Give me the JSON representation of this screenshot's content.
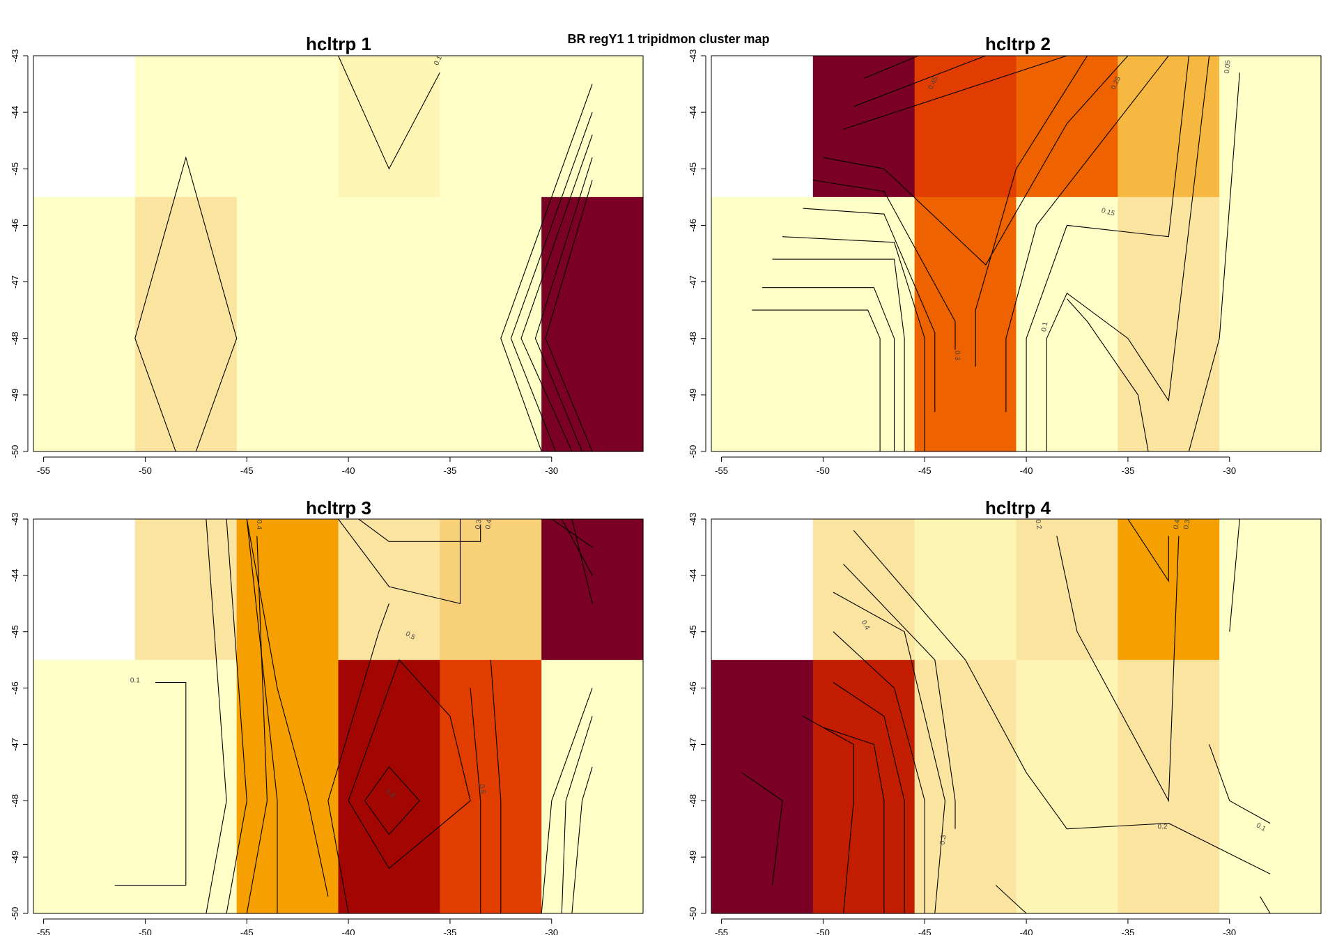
{
  "title": "BR regY1 1 tripidmon cluster map",
  "colors": {
    "levels": [
      "#FFFFC8",
      "#FEF5B4",
      "#FBE3A0",
      "#F8D07A",
      "#F6B840",
      "#F5A000",
      "#EE6300",
      "#E13D00",
      "#C21D00",
      "#A30500",
      "#7A0025"
    ]
  },
  "chart_data": [
    {
      "type": "heatmap",
      "title": "hcltrp 1",
      "x_ticks": [
        -55,
        -50,
        -45,
        -40,
        -35,
        -30
      ],
      "y_ticks": [
        -43,
        -44,
        -45,
        -46,
        -47,
        -48,
        -49,
        -50
      ],
      "xlim": [
        -55.5,
        -25.5
      ],
      "ylim": [
        -50,
        -43
      ],
      "cells": {
        "x_centers": [
          -53,
          -48,
          -43,
          -38,
          -33,
          -28
        ],
        "row_top": [
          null,
          0,
          0,
          1,
          0,
          0
        ],
        "row_bottom": [
          0,
          2,
          0,
          0,
          0,
          10
        ]
      },
      "contour_labels": [
        "0.1"
      ]
    },
    {
      "type": "heatmap",
      "title": "hcltrp 2",
      "x_ticks": [
        -55,
        -50,
        -45,
        -40,
        -35,
        -30
      ],
      "y_ticks": [
        -43,
        -44,
        -45,
        -46,
        -47,
        -48,
        -49,
        -50
      ],
      "xlim": [
        -55.5,
        -25.5
      ],
      "ylim": [
        -50,
        -43
      ],
      "cells": {
        "x_centers": [
          -53,
          -48,
          -43,
          -38,
          -33,
          -28
        ],
        "row_top": [
          null,
          10,
          7,
          6,
          4,
          0
        ],
        "row_bottom": [
          0,
          0,
          6,
          0,
          2,
          0
        ]
      },
      "contour_labels": [
        "0.45",
        "0.25",
        "0.05",
        "0.15",
        "0.3",
        "0.1"
      ]
    },
    {
      "type": "heatmap",
      "title": "hcltrp 3",
      "x_ticks": [
        -55,
        -50,
        -45,
        -40,
        -35,
        -30
      ],
      "y_ticks": [
        -43,
        -44,
        -45,
        -46,
        -47,
        -48,
        -49,
        -50
      ],
      "xlim": [
        -55.5,
        -25.5
      ],
      "ylim": [
        -50,
        -43
      ],
      "cells": {
        "x_centers": [
          -53,
          -48,
          -43,
          -38,
          -33,
          -28
        ],
        "row_top": [
          null,
          2,
          5,
          2,
          3,
          10
        ],
        "row_bottom": [
          0,
          0,
          5,
          9,
          7,
          0
        ]
      },
      "contour_labels": [
        "0.1",
        "0.4",
        "0.3",
        "0.4",
        "0.5",
        "0.6",
        "0.8"
      ]
    },
    {
      "type": "heatmap",
      "title": "hcltrp 4",
      "x_ticks": [
        -55,
        -50,
        -45,
        -40,
        -35,
        -30
      ],
      "y_ticks": [
        -43,
        -44,
        -45,
        -46,
        -47,
        -48,
        -49,
        -50
      ],
      "xlim": [
        -55.5,
        -25.5
      ],
      "ylim": [
        -50,
        -43
      ],
      "cells": {
        "x_centers": [
          -53,
          -48,
          -43,
          -38,
          -33,
          -28
        ],
        "row_top": [
          null,
          2,
          1,
          2,
          5,
          0
        ],
        "row_bottom": [
          10,
          8,
          2,
          1,
          2,
          0
        ]
      },
      "contour_labels": [
        "0.2",
        "0.4",
        "0.3",
        "0.4",
        "0.3",
        "0.1",
        "0.2"
      ]
    }
  ]
}
